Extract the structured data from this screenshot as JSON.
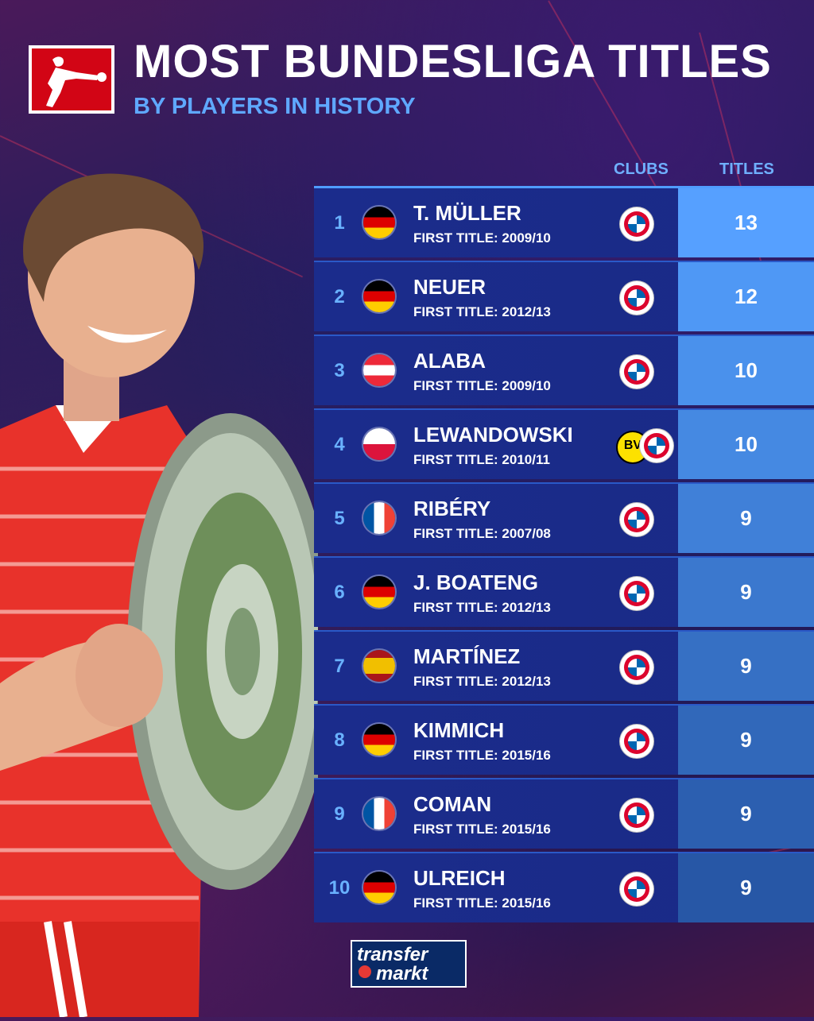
{
  "header": {
    "title": "MOST BUNDESLIGA TITLES",
    "subtitle": "BY PLAYERS IN HISTORY"
  },
  "columns": {
    "clubs": "CLUBS",
    "titles": "TITLES"
  },
  "rows": [
    {
      "rank": "1",
      "name": "T. MÜLLER",
      "first": "FIRST TITLE: 2009/10",
      "titles": "13",
      "flag": "germany",
      "clubs": [
        "bayern"
      ]
    },
    {
      "rank": "2",
      "name": "NEUER",
      "first": "FIRST TITLE: 2012/13",
      "titles": "12",
      "flag": "germany",
      "clubs": [
        "bayern"
      ]
    },
    {
      "rank": "3",
      "name": "ALABA",
      "first": "FIRST TITLE: 2009/10",
      "titles": "10",
      "flag": "austria",
      "clubs": [
        "bayern"
      ]
    },
    {
      "rank": "4",
      "name": "LEWANDOWSKI",
      "first": "FIRST TITLE: 2010/11",
      "titles": "10",
      "flag": "poland",
      "clubs": [
        "dortmund",
        "bayern"
      ]
    },
    {
      "rank": "5",
      "name": "RIBÉRY",
      "first": "FIRST TITLE: 2007/08",
      "titles": "9",
      "flag": "france",
      "clubs": [
        "bayern"
      ]
    },
    {
      "rank": "6",
      "name": "J. BOATENG",
      "first": "FIRST TITLE: 2012/13",
      "titles": "9",
      "flag": "germany",
      "clubs": [
        "bayern"
      ]
    },
    {
      "rank": "7",
      "name": "MARTÍNEZ",
      "first": "FIRST TITLE: 2012/13",
      "titles": "9",
      "flag": "spain",
      "clubs": [
        "bayern"
      ]
    },
    {
      "rank": "8",
      "name": "KIMMICH",
      "first": "FIRST TITLE: 2015/16",
      "titles": "9",
      "flag": "germany",
      "clubs": [
        "bayern"
      ]
    },
    {
      "rank": "9",
      "name": "COMAN",
      "first": "FIRST TITLE: 2015/16",
      "titles": "9",
      "flag": "france",
      "clubs": [
        "bayern"
      ]
    },
    {
      "rank": "10",
      "name": "ULREICH",
      "first": "FIRST TITLE: 2015/16",
      "titles": "9",
      "flag": "germany",
      "clubs": [
        "bayern"
      ]
    }
  ],
  "titles_bg_colors": [
    "#56a0ff",
    "#4f98f5",
    "#4a91ec",
    "#4589e2",
    "#4080d8",
    "#3b78ce",
    "#3670c4",
    "#3168ba",
    "#2c5fb0",
    "#2757a6"
  ],
  "footer": {
    "logo_line1": "transfer",
    "logo_line2": "markt"
  },
  "colors": {
    "accent": "#5fa8ff",
    "row_bg": "#1b2c8c"
  }
}
